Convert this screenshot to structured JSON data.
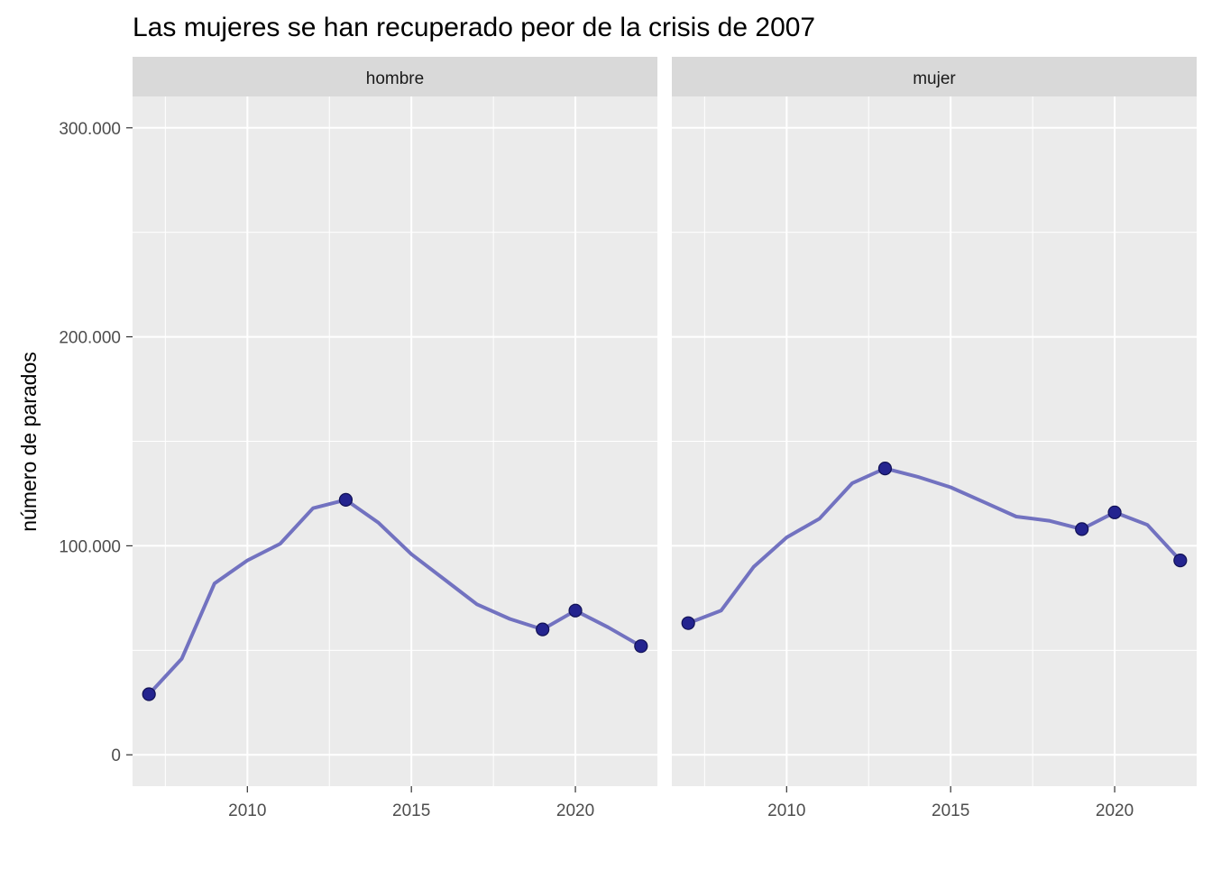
{
  "chart_data": {
    "type": "line",
    "title": "Las mujeres se han recuperado peor de la crisis de 2007",
    "ylabel": "número de parados",
    "xlabel": "",
    "xlim": [
      2006.5,
      2022.5
    ],
    "ylim": [
      -15000,
      315000
    ],
    "x_ticks": [
      2010,
      2015,
      2020
    ],
    "x_tick_labels": [
      "2010",
      "2015",
      "2020"
    ],
    "y_ticks": [
      0,
      100000,
      200000,
      300000
    ],
    "y_tick_labels": [
      "0",
      "100.000",
      "200.000",
      "300.000"
    ],
    "grid": true,
    "line_color": "#7272c0",
    "point_color": "#24248f",
    "panels": [
      {
        "label": "hombre",
        "x": [
          2007,
          2008,
          2009,
          2010,
          2011,
          2012,
          2013,
          2014,
          2015,
          2016,
          2017,
          2018,
          2019,
          2020,
          2021,
          2022
        ],
        "values": [
          29000,
          46000,
          82000,
          93000,
          101000,
          118000,
          122000,
          111000,
          96000,
          84000,
          72000,
          65000,
          60000,
          69000,
          61000,
          52000
        ],
        "highlight_x": [
          2007,
          2013,
          2019,
          2020,
          2022
        ]
      },
      {
        "label": "mujer",
        "x": [
          2007,
          2008,
          2009,
          2010,
          2011,
          2012,
          2013,
          2014,
          2015,
          2016,
          2017,
          2018,
          2019,
          2020,
          2021,
          2022
        ],
        "values": [
          63000,
          69000,
          90000,
          104000,
          113000,
          130000,
          137000,
          133000,
          128000,
          121000,
          114000,
          112000,
          108000,
          116000,
          110000,
          93000
        ],
        "highlight_x": [
          2007,
          2013,
          2019,
          2020,
          2022
        ]
      }
    ]
  }
}
